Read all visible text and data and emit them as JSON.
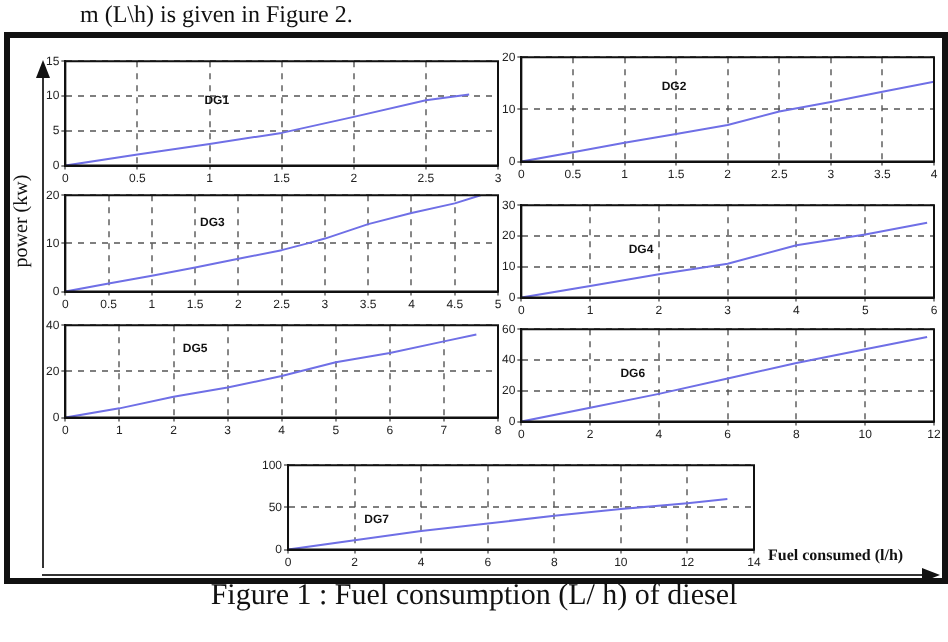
{
  "chart_data": [
    {
      "type": "line",
      "x": [
        0,
        0.5,
        1,
        1.5,
        2,
        2.5,
        2.8
      ],
      "series": [
        {
          "color": "#6f6fe6",
          "values": [
            0,
            1.6,
            3.1,
            4.7,
            7,
            9.4,
            10.2
          ]
        }
      ],
      "xlim": [
        0,
        3
      ],
      "xticks": [
        0,
        0.5,
        1,
        1.5,
        2,
        2.5,
        3
      ],
      "ylim": [
        0,
        15
      ],
      "yticks": [
        0,
        5,
        10,
        15
      ],
      "grid": true,
      "annotations": [
        "m (L\\h) is given in Figure 2.",
        "DG1"
      ]
    },
    {
      "type": "line",
      "x": [
        0,
        0.5,
        1,
        1.5,
        2,
        2.5,
        3,
        3.5,
        4
      ],
      "series": [
        {
          "color": "#6f6fe6",
          "values": [
            0,
            1.8,
            3.6,
            5.3,
            7,
            9.6,
            11.4,
            13.4,
            15.3
          ]
        }
      ],
      "xlim": [
        0,
        4
      ],
      "xticks": [
        0,
        0.5,
        1,
        1.5,
        2,
        2.5,
        3,
        3.5,
        4
      ],
      "ylim": [
        0,
        20
      ],
      "yticks": [
        0,
        10,
        20
      ],
      "grid": true,
      "annotations": [
        "DG2"
      ]
    },
    {
      "type": "line",
      "x": [
        0,
        0.5,
        1,
        1.5,
        2,
        2.5,
        2.8,
        3,
        3.5,
        4,
        4.5,
        4.8
      ],
      "series": [
        {
          "color": "#6f6fe6",
          "values": [
            0,
            1.7,
            3.3,
            5,
            6.8,
            8.6,
            10,
            11,
            14,
            16.3,
            18.3,
            20
          ]
        }
      ],
      "xlim": [
        0,
        5
      ],
      "xticks": [
        0,
        0.5,
        1,
        1.5,
        2,
        2.5,
        3,
        3.5,
        4,
        4.5,
        5
      ],
      "ylim": [
        0,
        20
      ],
      "yticks": [
        0,
        10,
        20
      ],
      "ylabel": "power (kw)",
      "grid": true,
      "annotations": [
        "DG3"
      ]
    },
    {
      "type": "line",
      "x": [
        0,
        1,
        2,
        3,
        4,
        5,
        5.9
      ],
      "series": [
        {
          "color": "#6f6fe6",
          "values": [
            0,
            3.8,
            7.6,
            11,
            17,
            20.5,
            24.3
          ]
        }
      ],
      "xlim": [
        0,
        6
      ],
      "xticks": [
        0,
        1,
        2,
        3,
        4,
        5,
        6
      ],
      "ylim": [
        0,
        30
      ],
      "yticks": [
        0,
        10,
        20,
        30
      ],
      "grid": true,
      "annotations": [
        "DG4"
      ]
    },
    {
      "type": "line",
      "x": [
        0,
        1,
        2,
        3,
        4,
        5,
        6,
        7,
        7.6
      ],
      "series": [
        {
          "color": "#6f6fe6",
          "values": [
            0,
            4,
            9,
            13,
            18,
            24,
            28,
            33,
            36
          ]
        }
      ],
      "xlim": [
        0,
        8
      ],
      "xticks": [
        0,
        1,
        2,
        3,
        4,
        5,
        6,
        7,
        8
      ],
      "ylim": [
        0,
        40
      ],
      "yticks": [
        0,
        20,
        40
      ],
      "grid": true,
      "annotations": [
        "DG5"
      ]
    },
    {
      "type": "line",
      "x": [
        0,
        2,
        4,
        6,
        8,
        10,
        11.8
      ],
      "series": [
        {
          "color": "#6f6fe6",
          "values": [
            0,
            9,
            18,
            28,
            38,
            47,
            55
          ]
        }
      ],
      "xlim": [
        0,
        12
      ],
      "xticks": [
        0,
        2,
        4,
        6,
        8,
        10,
        12
      ],
      "ylim": [
        0,
        60
      ],
      "yticks": [
        0,
        20,
        40,
        60
      ],
      "grid": true,
      "annotations": [
        "DG6"
      ]
    },
    {
      "type": "line",
      "x": [
        0,
        2,
        4,
        6,
        8,
        10,
        12,
        13.2
      ],
      "series": [
        {
          "color": "#6f6fe6",
          "values": [
            0,
            11,
            22,
            31,
            40,
            48,
            55,
            60
          ]
        }
      ],
      "xlim": [
        0,
        14
      ],
      "xticks": [
        0,
        2,
        4,
        6,
        8,
        10,
        12,
        14
      ],
      "ylim": [
        0,
        100
      ],
      "yticks": [
        0,
        50,
        100
      ],
      "xlabel": "Fuel consumed (l/h)",
      "grid": true,
      "annotations": [
        "DG7",
        "Figure 1 : Fuel consumption (L/ h) of diesel"
      ]
    }
  ]
}
